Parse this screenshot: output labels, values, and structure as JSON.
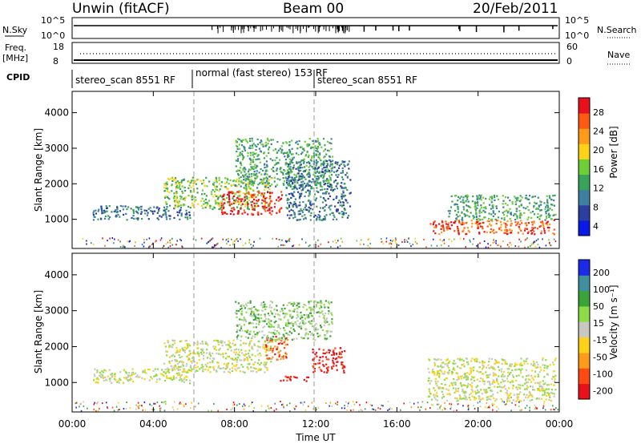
{
  "header": {
    "station": "Unwin (fitACF)",
    "beam": "Beam 00",
    "date": "20/Feb/2011"
  },
  "panels": {
    "nsky_label": "N.Sky",
    "nsky_ticks": [
      "10^5",
      "10^0"
    ],
    "nsearch_label": "N.Search",
    "nsearch_ticks": [
      "10^5",
      "10^0"
    ],
    "freq_label_1": "Freq.",
    "freq_label_2": "[MHz]",
    "freq_ticks": [
      "18",
      "8"
    ],
    "nave_label": "Nave",
    "nave_ticks": [
      "60",
      "0"
    ],
    "cpid_label": "CPID",
    "cpid_segments": [
      "stereo_scan 8551 RF",
      "normal (fast stereo) 153 RF",
      "stereo_scan 8551 RF"
    ]
  },
  "colors": {
    "power": [
      "#0a1ae6",
      "#2c3fa0",
      "#3f7fa0",
      "#3aa35a",
      "#6fcd3a",
      "#ffd21a",
      "#ff9a1a",
      "#ff5a12",
      "#e8101a"
    ],
    "velocity": [
      "#e8101a",
      "#ff4a12",
      "#ff9a1a",
      "#ffd21a",
      "#c8c8c0",
      "#8fdc4a",
      "#3aa33a",
      "#3f8f9f",
      "#1a2ae6"
    ]
  },
  "chart_data": [
    {
      "type": "heatmap",
      "name": "power",
      "xlabel": "",
      "ylabel": "Slant Range [km]",
      "ylim": [
        180,
        4600
      ],
      "yticks": [
        "4000",
        "3000",
        "2000",
        "1000"
      ],
      "colorbar_label": "Power [dB]",
      "colorbar_ticks": [
        "28",
        "24",
        "20",
        "16",
        "12",
        "8",
        "4"
      ],
      "regions": [
        {
          "t": [
            1.0,
            5.8
          ],
          "r": [
            1000,
            1400
          ],
          "level": 2
        },
        {
          "t": [
            4.5,
            9.8
          ],
          "r": [
            1300,
            2200
          ],
          "level": 4
        },
        {
          "t": [
            7.3,
            10.3
          ],
          "r": [
            1150,
            1800
          ],
          "level": 8
        },
        {
          "t": [
            8.0,
            12.8
          ],
          "r": [
            1900,
            3300
          ],
          "level": 3
        },
        {
          "t": [
            10.5,
            13.7
          ],
          "r": [
            1000,
            2700
          ],
          "level": 2
        },
        {
          "t": [
            17.5,
            23.8
          ],
          "r": [
            600,
            1000
          ],
          "level": 7
        },
        {
          "t": [
            18.5,
            23.8
          ],
          "r": [
            1000,
            1700
          ],
          "level": 3
        }
      ]
    },
    {
      "type": "heatmap",
      "name": "velocity",
      "xlabel": "Time UT",
      "ylabel": "Slant Range [km]",
      "ylim": [
        180,
        4600
      ],
      "yticks": [
        "4000",
        "3000",
        "2000",
        "1000"
      ],
      "xticks": [
        "00:00",
        "04:00",
        "08:00",
        "12:00",
        "16:00",
        "20:00",
        "00:00"
      ],
      "xlim": [
        0,
        24
      ],
      "colorbar_label": "Velocity [m s⁻¹]",
      "colorbar_ticks": [
        "200",
        "100",
        "50",
        "15",
        "-15",
        "-50",
        "-100",
        "-200"
      ],
      "regions": [
        {
          "t": [
            1.0,
            5.8
          ],
          "r": [
            1000,
            1400
          ],
          "level": 4
        },
        {
          "t": [
            4.5,
            9.8
          ],
          "r": [
            1300,
            2200
          ],
          "level": 4
        },
        {
          "t": [
            9.5,
            10.6
          ],
          "r": [
            1650,
            2300
          ],
          "level": 1
        },
        {
          "t": [
            10.2,
            11.6
          ],
          "r": [
            1050,
            1200
          ],
          "level": 0
        },
        {
          "t": [
            11.8,
            13.4
          ],
          "r": [
            1300,
            2000
          ],
          "level": 0
        },
        {
          "t": [
            8.0,
            12.8
          ],
          "r": [
            2200,
            3300
          ],
          "level": 5
        },
        {
          "t": [
            17.5,
            23.8
          ],
          "r": [
            500,
            1700
          ],
          "level": 4
        }
      ]
    }
  ]
}
